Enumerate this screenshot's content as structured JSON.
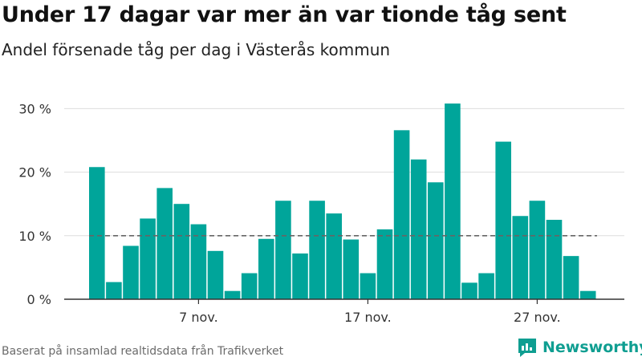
{
  "title": "Under 17 dagar var mer än var tionde tåg sent",
  "subtitle": "Andel försenade tåg per dag i Västerås kommun",
  "source": "Baserat på insamlad realtidsdata från Trafikverket",
  "brand": {
    "name": "Newsworthy",
    "color": "#0f9e91"
  },
  "chart_data": {
    "type": "bar",
    "x": [
      "2021-11-01",
      "2021-11-02",
      "2021-11-03",
      "2021-11-04",
      "2021-11-05",
      "2021-11-06",
      "2021-11-07",
      "2021-11-08",
      "2021-11-09",
      "2021-11-10",
      "2021-11-11",
      "2021-11-12",
      "2021-11-13",
      "2021-11-14",
      "2021-11-15",
      "2021-11-16",
      "2021-11-17",
      "2021-11-18",
      "2021-11-19",
      "2021-11-20",
      "2021-11-21",
      "2021-11-22",
      "2021-11-23",
      "2021-11-24",
      "2021-11-25",
      "2021-11-26",
      "2021-11-27",
      "2021-11-28",
      "2021-11-29",
      "2021-11-30"
    ],
    "values": [
      20.8,
      2.7,
      8.4,
      12.7,
      17.5,
      15.0,
      11.8,
      7.6,
      1.3,
      4.1,
      9.5,
      15.5,
      7.2,
      15.5,
      13.5,
      9.4,
      4.1,
      11.0,
      26.6,
      22.0,
      18.4,
      30.8,
      2.6,
      4.1,
      24.8,
      13.1,
      15.5,
      12.5,
      6.8,
      1.3
    ],
    "reference_line": {
      "value": 10,
      "style": "dashed"
    },
    "y_ticks": [
      0,
      10,
      20,
      30
    ],
    "y_tick_labels": [
      "0 %",
      "10 %",
      "20 %",
      "30 %"
    ],
    "x_ticks": [
      "2021-11-07",
      "2021-11-17",
      "2021-11-27"
    ],
    "x_tick_labels": [
      "7 nov.",
      "17 nov.",
      "27 nov."
    ],
    "ylim": [
      0,
      31
    ],
    "grid": true,
    "colors": {
      "bar": "#00a59a",
      "grid": "#dddddd",
      "axis": "#333333",
      "reference": "#666666"
    }
  }
}
